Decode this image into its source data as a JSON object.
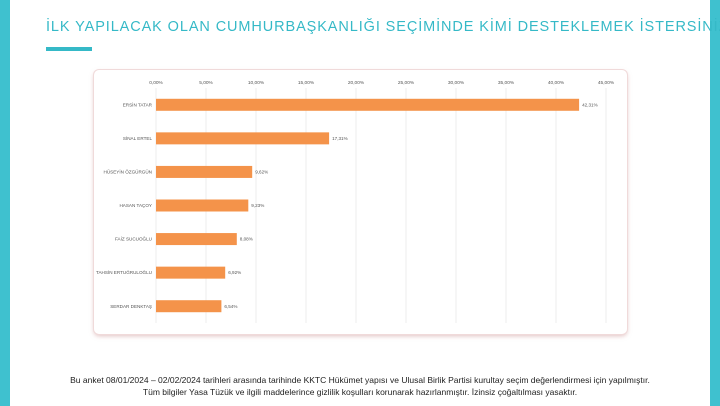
{
  "page": {
    "title": "İLK YAPILACAK OLAN CUMHURBAŞKANLIĞI SEÇİMİNDE KİMİ DESTEKLEMEK İSTERSİNİZ?",
    "footnote_line1": "Bu anket 08/01/2024 – 02/02/2024 tarihleri arasında tarihinde KKTC Hükümet yapısı ve Ulusal Birlik Partisi kurultay seçim değerlendirmesi için yapılmıştır.",
    "footnote_line2": "Tüm bilgiler Yasa Tüzük ve ilgili maddelerince gizlilik koşulları korunarak hazırlanmıştır.  İzinsiz çoğaltılması yasaktır."
  },
  "colors": {
    "accent": "#3fc1cf",
    "bar": "#f4934a",
    "gridline": "#e6e6e6"
  },
  "chart_data": {
    "type": "bar",
    "orientation": "horizontal",
    "categories": [
      "ERSİN TATAR",
      "SİNAL ERTEL",
      "HÜSEYİN ÖZGÜRGÜN",
      "HASAN TAÇOY",
      "FAİZ SUCUOĞLU",
      "TAHSİN ERTUĞRULOĞLU",
      "SERDAR DENKTAŞ"
    ],
    "values": [
      42.31,
      17.31,
      9.62,
      9.23,
      8.08,
      6.92,
      6.54
    ],
    "value_labels": [
      "42,31%",
      "17,31%",
      "9,62%",
      "9,23%",
      "8,08%",
      "6,92%",
      "6,54%"
    ],
    "xlim": [
      0,
      45
    ],
    "x_ticks": [
      0,
      5,
      10,
      15,
      20,
      25,
      30,
      35,
      40,
      45
    ],
    "x_tick_labels": [
      "0,00%",
      "5,00%",
      "10,00%",
      "15,00%",
      "20,00%",
      "25,00%",
      "30,00%",
      "35,00%",
      "40,00%",
      "45,00%"
    ],
    "x_axis_position": "top",
    "grid": true
  }
}
